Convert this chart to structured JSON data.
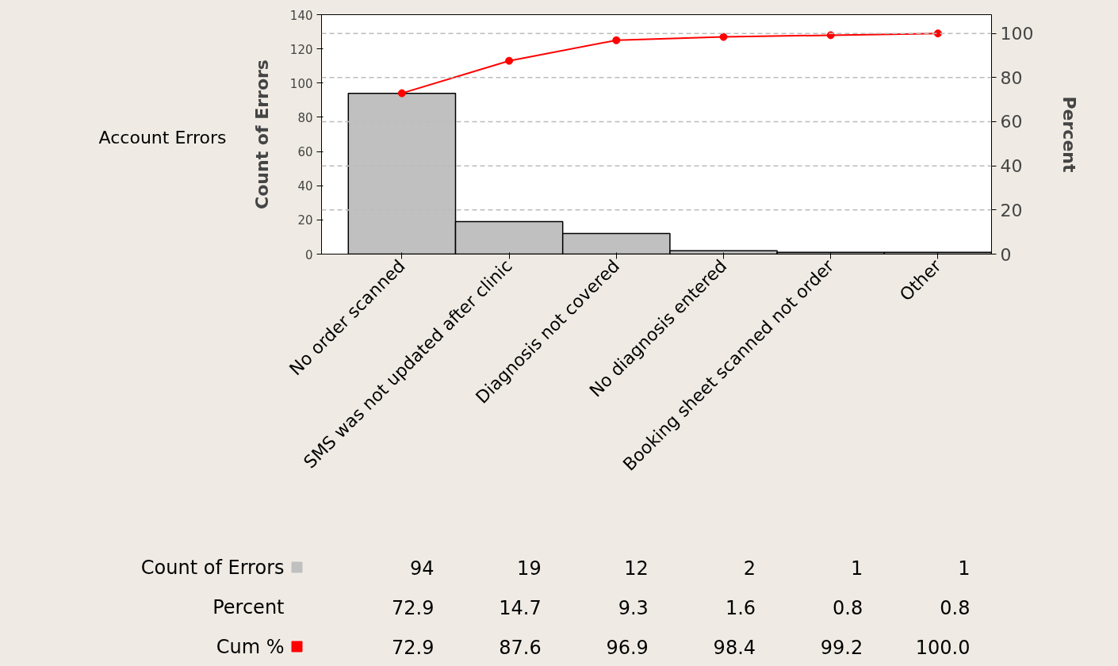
{
  "chart_data": {
    "type": "bar",
    "xlabel": "Account Errors",
    "ylabel": "Count of Errors",
    "y2label": "Percent",
    "categories": [
      "No order scanned",
      "SMS was not updated after clinic",
      "Diagnosis not covered",
      "No diagnosis entered",
      "Booking sheet scanned not order",
      "Other"
    ],
    "series": [
      {
        "name": "Count of Errors",
        "color": "#c0c0c0",
        "values": [
          94,
          19,
          12,
          2,
          1,
          1
        ],
        "value_labels": [
          "94",
          "19",
          "12",
          "2",
          "1",
          "1"
        ]
      },
      {
        "name": "Cum %",
        "type": "line",
        "axis": "y2",
        "color": "#ff0000",
        "marker": "circle",
        "values": [
          72.9,
          87.6,
          96.9,
          98.4,
          99.2,
          100.0
        ],
        "value_labels": [
          "72.9",
          "87.6",
          "96.9",
          "98.4",
          "99.2",
          "100.0"
        ]
      }
    ],
    "annotations": [
      "Percent",
      "72.9",
      "14.7",
      "9.3",
      "1.6",
      "0.8",
      "0.8"
    ],
    "legend": "bottom left",
    "ylim": [
      0,
      140
    ],
    "yticks": [
      0,
      20,
      40,
      60,
      80,
      100,
      120,
      140
    ],
    "y2lim": [
      0,
      108.5
    ],
    "y2ticks": [
      0,
      20,
      40,
      60,
      80,
      100
    ],
    "grid": "y2"
  }
}
